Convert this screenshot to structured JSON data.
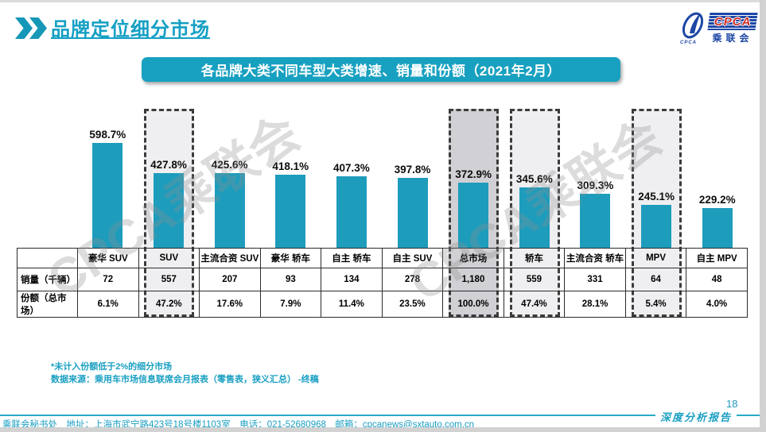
{
  "page": {
    "title": "品牌定位细分市场",
    "page_number": "18",
    "report_type_label": "深度分析报告"
  },
  "logo": {
    "acronym": "CPCA",
    "cn_name": "乘联会",
    "emblem_caption": "CPCA"
  },
  "banner": {
    "title": "各品牌大类不同车型大类增速、销量和份额（2021年2月）"
  },
  "chart_data": {
    "type": "bar",
    "title": "各品牌大类不同车型大类增速、销量和份额（2021年2月）",
    "categories": [
      "豪华 SUV",
      "SUV",
      "主流合资 SUV",
      "豪华 轿车",
      "自主 轿车",
      "自主 SUV",
      "总市场",
      "轿车",
      "主流合资 轿车",
      "MPV",
      "自主 MPV"
    ],
    "series": [
      {
        "name": "增速",
        "unit": "%",
        "values": [
          598.7,
          427.8,
          425.6,
          418.1,
          407.3,
          397.8,
          372.9,
          345.6,
          309.3,
          245.1,
          229.2
        ]
      },
      {
        "name": "销量（千辆）",
        "values": [
          "72",
          "557",
          "207",
          "93",
          "134",
          "278",
          "1,180",
          "559",
          "331",
          "64",
          "48"
        ]
      },
      {
        "name": "份额（总市场）",
        "values": [
          "6.1%",
          "47.2%",
          "17.6%",
          "7.9%",
          "11.4%",
          "23.5%",
          "100.0%",
          "47.4%",
          "28.1%",
          "5.4%",
          "4.0%"
        ]
      }
    ],
    "highlighted_columns": [
      1,
      6,
      7,
      9
    ],
    "emphasis_column": 6,
    "bar_color": "#1e9cbc",
    "watermark": "CPCA乘联会",
    "ylim": [
      0,
      650
    ],
    "grid": false,
    "legend": "none"
  },
  "footnotes": {
    "line1": "*未计入份额低于2%的细分市场",
    "line2": "数据来源：乘用车市场信息联席会月报表（零售表，狭义汇总） -终稿"
  },
  "footer": {
    "text": "乘联会秘书处　地址：上海市武宁路423号18号楼1103室　电话：021-52680968　邮箱：cpcanews@sxtauto.com.cn"
  },
  "colors": {
    "accent_teal": "#18a0c0",
    "bar_teal": "#1e9cbc",
    "logo_blue": "#1d47a5",
    "logo_red": "#cf2e28",
    "dash_border": "#3c3c3c"
  }
}
